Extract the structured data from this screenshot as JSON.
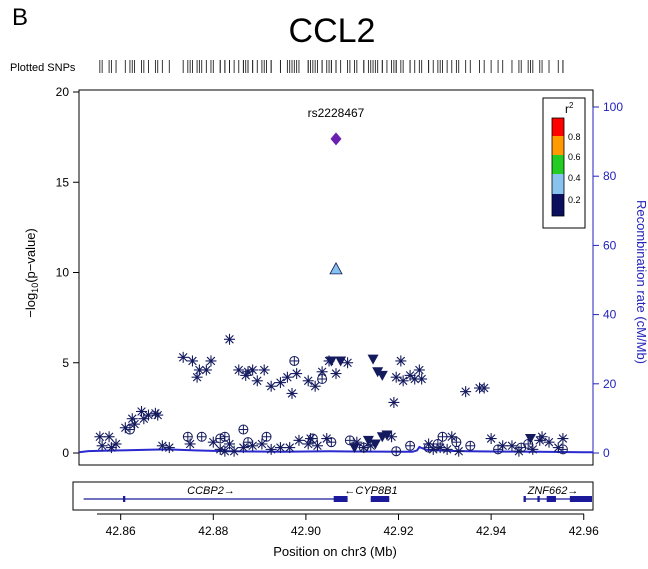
{
  "panel_label": "B",
  "title": "CCL2",
  "snp_track_label": "Plotted SNPs",
  "colors": {
    "axis_right": "#2222bb",
    "recomb_line": "#2a2ad0",
    "points": "#141a5e",
    "lead": "#6a1fb0",
    "r2_08": "#ff0000",
    "r2_06": "#ff9900",
    "r2_04": "#22cc22",
    "r2_02": "#87c3ee",
    "r2_00": "#0b0f5e"
  },
  "chart_data": {
    "type": "scatter",
    "title": "CCL2",
    "xlabel": "Position on chr3 (Mb)",
    "ylabel": "-log10(p-value)",
    "y2label": "Recombination rate (cM/Mb)",
    "xlim": [
      42.851,
      42.962
    ],
    "ylim": [
      0,
      20
    ],
    "y2lim": [
      0,
      100
    ],
    "xticks": [
      "42.86",
      "42.88",
      "42.90",
      "42.92",
      "42.94",
      "42.96"
    ],
    "yticks": [
      "0",
      "5",
      "10",
      "15",
      "20"
    ],
    "y2ticks": [
      "0",
      "20",
      "40",
      "60",
      "80",
      "100"
    ],
    "grid": false,
    "legend": {
      "title": "r2",
      "placement": "top-right",
      "ticks": [
        "0.8",
        "0.6",
        "0.4",
        "0.2"
      ]
    },
    "lead_snp": {
      "label": "rs2228467",
      "x": 42.9065,
      "y": 17.4
    },
    "highlight_points": [
      {
        "x": 42.9065,
        "y": 10.2,
        "shape": "triangle-up",
        "r2_bin": "0.2-0.4"
      }
    ],
    "recombination": [
      [
        42.851,
        0.1
      ],
      [
        42.853,
        0.4
      ],
      [
        42.856,
        0.5
      ],
      [
        42.86,
        0.6
      ],
      [
        42.866,
        0.8
      ],
      [
        42.87,
        0.9
      ],
      [
        42.876,
        0.6
      ],
      [
        42.882,
        0.4
      ],
      [
        42.888,
        0.3
      ],
      [
        42.895,
        0.2
      ],
      [
        42.9,
        0.3
      ],
      [
        42.905,
        0.35
      ],
      [
        42.91,
        0.3
      ],
      [
        42.915,
        0.25
      ],
      [
        42.92,
        0.2
      ],
      [
        42.923,
        0.2
      ],
      [
        42.924,
        0.6
      ],
      [
        42.9245,
        1.6
      ],
      [
        42.925,
        1.3
      ],
      [
        42.926,
        0.8
      ],
      [
        42.93,
        0.5
      ],
      [
        42.935,
        0.35
      ],
      [
        42.94,
        0.3
      ],
      [
        42.945,
        0.25
      ],
      [
        42.95,
        0.2
      ],
      [
        42.955,
        0.15
      ],
      [
        42.96,
        0.1
      ],
      [
        42.962,
        0.1
      ]
    ],
    "series": [
      {
        "shape": "asterisk",
        "points": [
          [
            42.8555,
            0.9
          ],
          [
            42.856,
            0.4
          ],
          [
            42.858,
            0.3
          ],
          [
            42.859,
            0.5
          ],
          [
            42.861,
            1.4
          ],
          [
            42.8625,
            1.9
          ],
          [
            42.863,
            1.6
          ],
          [
            42.8645,
            2.3
          ],
          [
            42.865,
            1.9
          ],
          [
            42.866,
            2.1
          ],
          [
            42.8675,
            2.2
          ],
          [
            42.868,
            2.1
          ],
          [
            42.869,
            0.4
          ],
          [
            42.8705,
            0.3
          ],
          [
            42.8735,
            5.3
          ],
          [
            42.8755,
            5.1
          ],
          [
            42.8765,
            4.2
          ],
          [
            42.877,
            4.6
          ],
          [
            42.8785,
            4.6
          ],
          [
            42.8795,
            5.1
          ],
          [
            42.88,
            0.6
          ],
          [
            42.8815,
            0.2
          ],
          [
            42.8825,
            0.1
          ],
          [
            42.8835,
            0.5
          ],
          [
            42.8845,
            0.1
          ],
          [
            42.8855,
            4.6
          ],
          [
            42.887,
            4.3
          ],
          [
            42.8885,
            4.6
          ],
          [
            42.8875,
            4.5
          ],
          [
            42.8895,
            4.0
          ],
          [
            42.891,
            4.6
          ],
          [
            42.8925,
            3.7
          ],
          [
            42.8945,
            3.9
          ],
          [
            42.896,
            4.2
          ],
          [
            42.897,
            3.3
          ],
          [
            42.898,
            4.4
          ],
          [
            42.9005,
            4.0
          ],
          [
            42.902,
            3.7
          ],
          [
            42.9035,
            4.5
          ],
          [
            42.905,
            5.1
          ],
          [
            42.909,
            5.0
          ],
          [
            42.8835,
            6.3
          ],
          [
            42.9065,
            4.4
          ],
          [
            42.911,
            0.6
          ],
          [
            42.9125,
            0.3
          ],
          [
            42.914,
            0.4
          ],
          [
            42.9185,
            0.9
          ],
          [
            42.919,
            2.8
          ],
          [
            42.9205,
            5.1
          ],
          [
            42.9225,
            4.3
          ],
          [
            42.9235,
            4.1
          ],
          [
            42.9245,
            4.6
          ],
          [
            42.925,
            4.1
          ],
          [
            42.9195,
            4.2
          ],
          [
            42.921,
            4.0
          ],
          [
            42.9265,
            0.5
          ],
          [
            42.9275,
            0.2
          ],
          [
            42.929,
            0.3
          ],
          [
            42.9305,
            0.2
          ],
          [
            42.933,
            0.1
          ],
          [
            42.9345,
            3.4
          ],
          [
            42.9375,
            3.6
          ],
          [
            42.9385,
            3.6
          ],
          [
            42.94,
            0.8
          ],
          [
            42.9425,
            0.4
          ],
          [
            42.9445,
            0.4
          ],
          [
            42.946,
            0.1
          ],
          [
            42.949,
            0.2
          ],
          [
            42.951,
            0.9
          ],
          [
            42.9525,
            0.6
          ],
          [
            42.9545,
            0.3
          ],
          [
            42.9555,
            0.8
          ],
          [
            42.8885,
            0.4
          ],
          [
            42.8905,
            0.5
          ],
          [
            42.8925,
            0.2
          ],
          [
            42.8945,
            0.3
          ],
          [
            42.8965,
            0.3
          ],
          [
            42.8985,
            0.7
          ],
          [
            42.9005,
            0.5
          ],
          [
            42.9025,
            0.4
          ],
          [
            42.9045,
            0.8
          ],
          [
            42.901,
            0.8
          ],
          [
            42.875,
            0.5
          ],
          [
            42.8865,
            0.3
          ],
          [
            42.8575,
            0.9
          ],
          [
            42.9505,
            0.7
          ],
          [
            42.9315,
            0.9
          ]
        ]
      },
      {
        "shape": "circle-plus",
        "points": [
          [
            42.862,
            1.3
          ],
          [
            42.8745,
            0.9
          ],
          [
            42.8775,
            0.9
          ],
          [
            42.8815,
            0.8
          ],
          [
            42.8825,
            0.9
          ],
          [
            42.8865,
            1.3
          ],
          [
            42.8875,
            0.6
          ],
          [
            42.8915,
            0.9
          ],
          [
            42.8975,
            5.1
          ],
          [
            42.9015,
            0.8
          ],
          [
            42.9035,
            4.1
          ],
          [
            42.9055,
            0.6
          ],
          [
            42.9095,
            0.7
          ],
          [
            42.9125,
            0.3
          ],
          [
            42.9195,
            0.1
          ],
          [
            42.9225,
            0.4
          ],
          [
            42.9265,
            0.3
          ],
          [
            42.9285,
            0.5
          ],
          [
            42.9325,
            0.6
          ],
          [
            42.9355,
            0.4
          ],
          [
            42.9415,
            0.2
          ],
          [
            42.9465,
            0.3
          ],
          [
            42.948,
            0.5
          ],
          [
            42.9555,
            0.2
          ],
          [
            42.9295,
            0.9
          ]
        ]
      },
      {
        "shape": "triangle-down",
        "points": [
          [
            42.9055,
            5.1
          ],
          [
            42.9075,
            5.1
          ],
          [
            42.9145,
            5.2
          ],
          [
            42.9155,
            4.5
          ],
          [
            42.9165,
            4.3
          ],
          [
            42.9135,
            0.7
          ],
          [
            42.9165,
            0.9
          ],
          [
            42.9175,
            1.0
          ],
          [
            42.915,
            0.5
          ],
          [
            42.9105,
            0.3
          ],
          [
            42.9485,
            0.8
          ]
        ]
      }
    ],
    "genes": [
      {
        "name": "CCBP2→",
        "start": 42.852,
        "end": 42.909,
        "exons": [
          [
            42.8605,
            42.861
          ],
          [
            42.906,
            42.909
          ]
        ]
      },
      {
        "name": "←CYP8B1",
        "start": 42.914,
        "end": 42.918,
        "exons": [
          [
            42.914,
            42.918
          ]
        ]
      },
      {
        "name": "ZNF662→",
        "start": 42.947,
        "end": 42.962,
        "exons": [
          [
            42.947,
            42.9475
          ],
          [
            42.95,
            42.9505
          ],
          [
            42.952,
            42.954
          ],
          [
            42.957,
            42.962
          ]
        ]
      }
    ]
  }
}
